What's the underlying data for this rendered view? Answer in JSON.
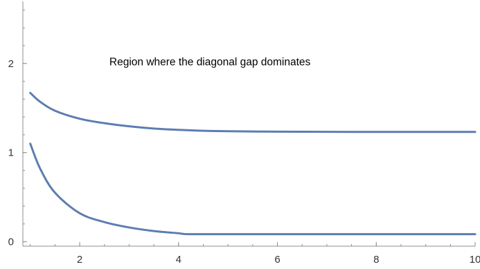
{
  "chart_data": {
    "type": "line",
    "title": "",
    "xlabel": "",
    "ylabel": "",
    "xlim": [
      0.85,
      10
    ],
    "ylim": [
      -0.05,
      2.65
    ],
    "x_ticks": [
      2,
      4,
      6,
      8,
      10
    ],
    "y_ticks": [
      0,
      1,
      2
    ],
    "x_minor_step": 0.5,
    "y_minor_step": 0.2,
    "grid": false,
    "annotation": {
      "text": "Region where the diagonal gap dominates",
      "x": 2.6,
      "y": 1.98
    },
    "series_color": "#5b7db1",
    "series": [
      {
        "x": [
          1.0,
          1.2,
          1.5,
          2.0,
          2.5,
          3.0,
          3.5,
          4.0,
          4.5,
          5.0,
          6.0,
          7.0,
          8.0,
          9.0,
          10.0
        ],
        "y": [
          1.67,
          1.57,
          1.47,
          1.38,
          1.33,
          1.295,
          1.27,
          1.255,
          1.245,
          1.24,
          1.235,
          1.233,
          1.232,
          1.232,
          1.232
        ]
      },
      {
        "x": [
          1.0,
          1.2,
          1.5,
          2.0,
          2.5,
          3.0,
          3.5,
          4.0,
          4.2,
          5.0,
          6.0,
          7.0,
          8.0,
          9.0,
          10.0
        ],
        "y": [
          1.1,
          0.82,
          0.55,
          0.32,
          0.22,
          0.16,
          0.12,
          0.095,
          0.085,
          0.085,
          0.085,
          0.085,
          0.085,
          0.085,
          0.085
        ]
      }
    ]
  }
}
